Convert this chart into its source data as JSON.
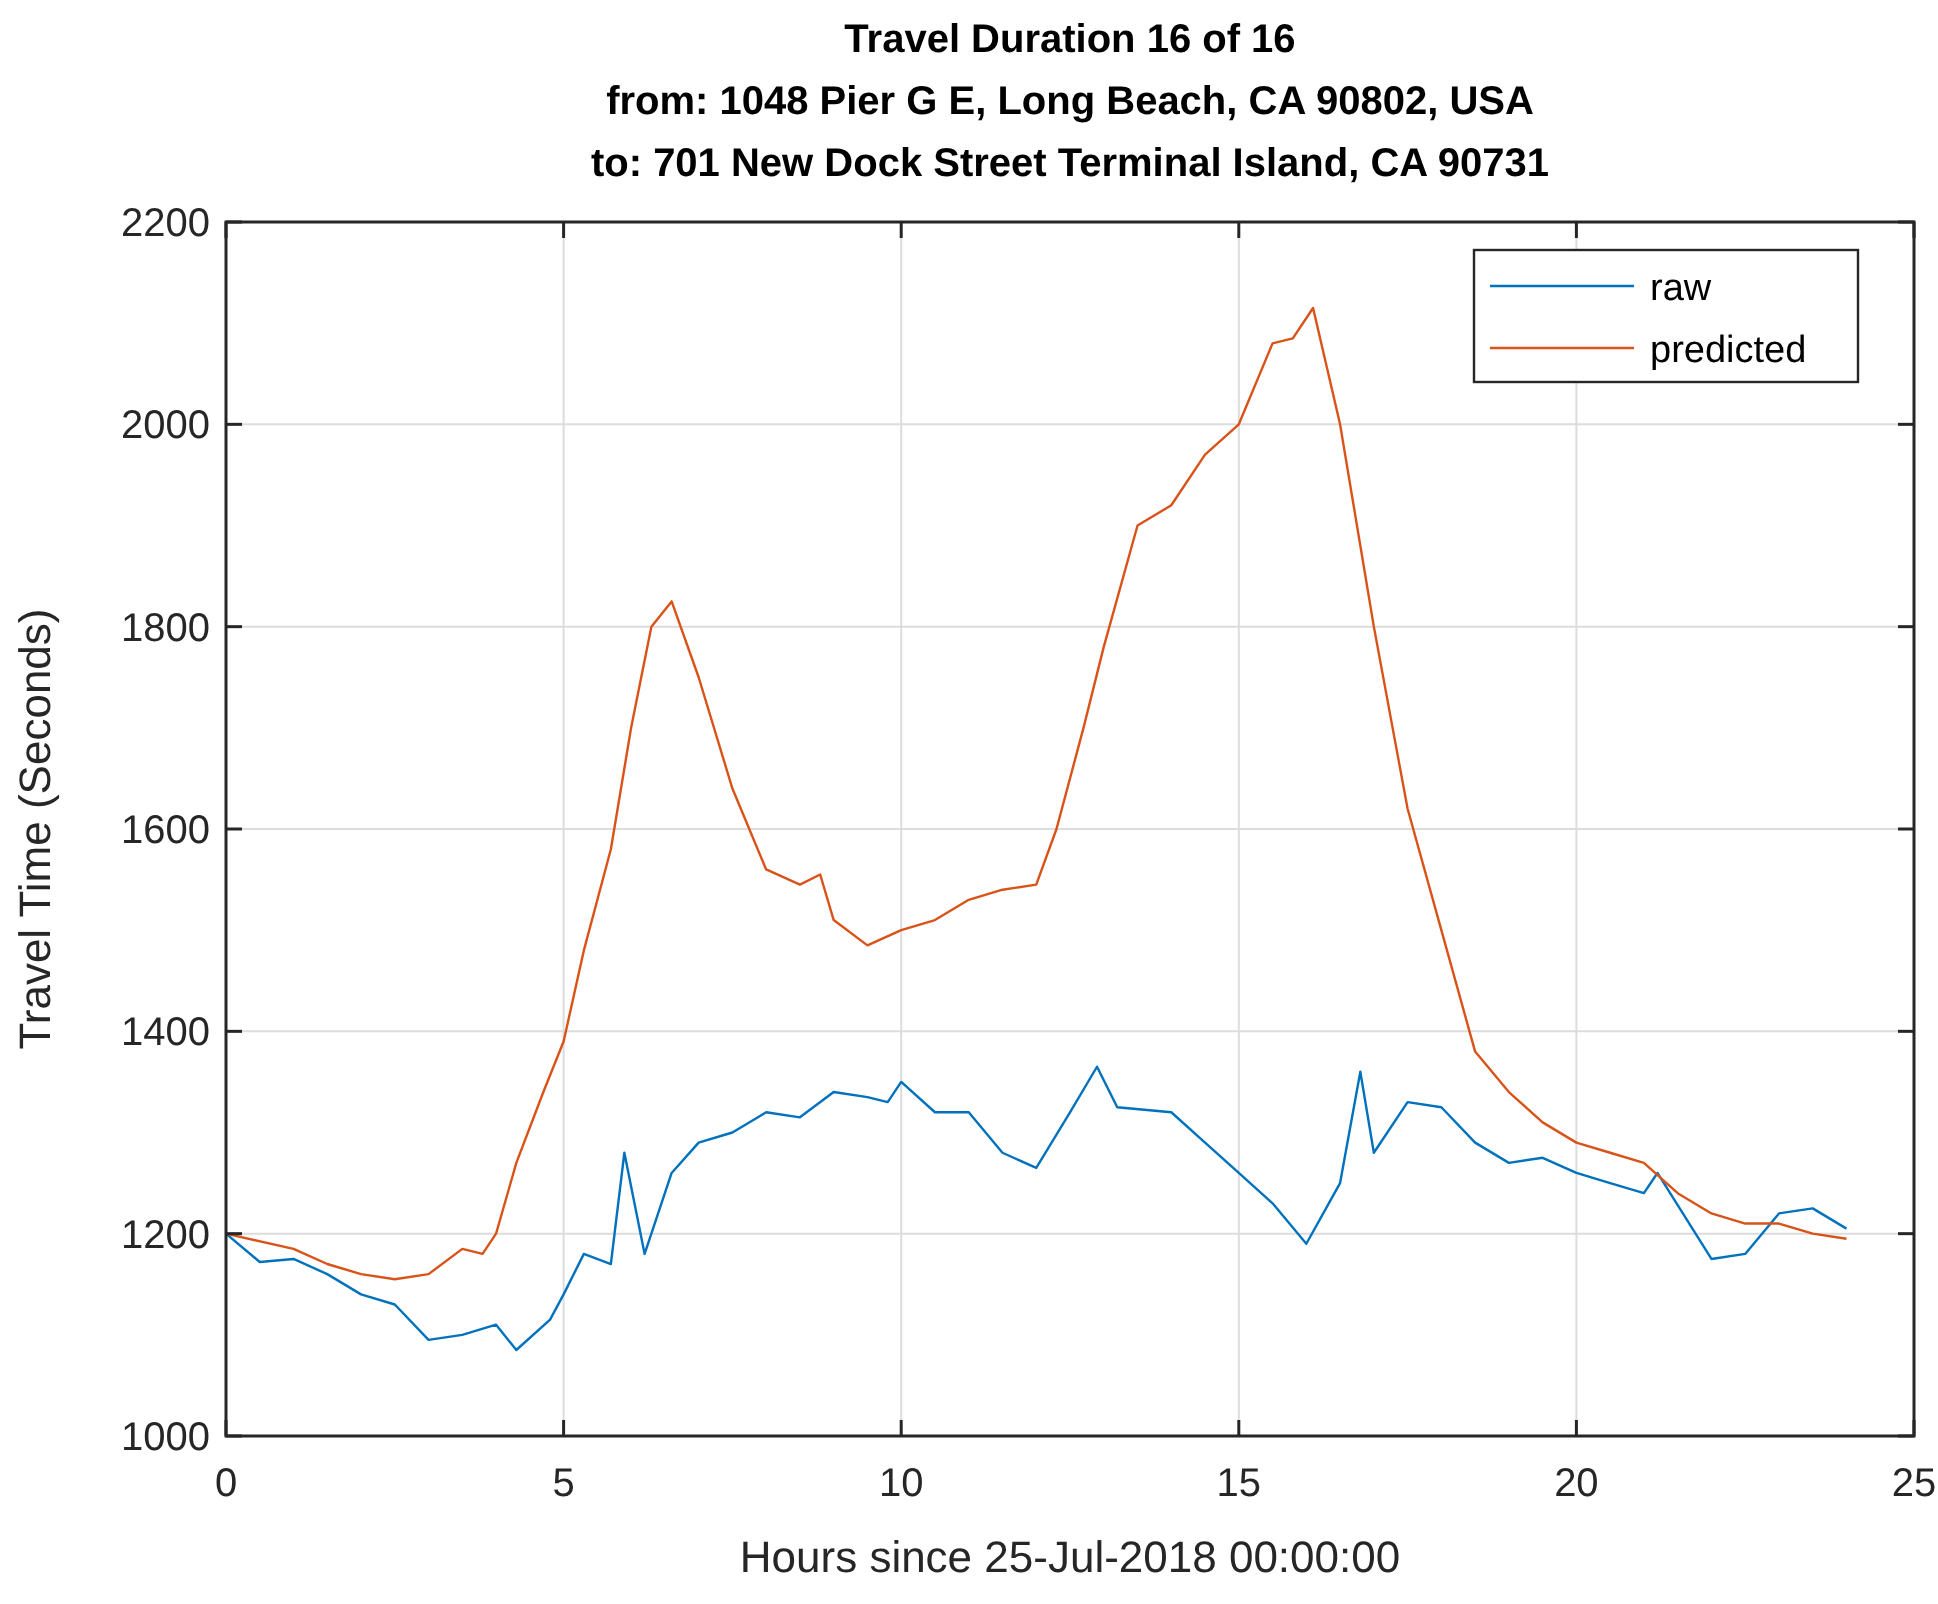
{
  "chart_data": {
    "type": "line",
    "title": "Travel Duration 16 of 16\nfrom: 1048 Pier G E, Long Beach, CA 90802, USA\nto: 701 New Dock Street Terminal Island, CA 90731",
    "xlabel": "Hours since 25-Jul-2018 00:00:00",
    "ylabel": "Travel Time (Seconds)",
    "xlim": [
      0,
      25
    ],
    "xticks": [
      0,
      5,
      10,
      15,
      20,
      25
    ],
    "ylim": [
      1000,
      2200
    ],
    "yticks": [
      1000,
      1200,
      1400,
      1600,
      1800,
      2000,
      2200
    ],
    "grid": true,
    "legend": "top right",
    "line_style": "solid",
    "series": [
      {
        "name": "raw",
        "color": "#0072bd",
        "x": [
          0,
          0.5,
          1,
          1.5,
          2,
          2.5,
          3,
          3.5,
          4,
          4.3,
          4.8,
          5,
          5.3,
          5.7,
          5.9,
          6.2,
          6.6,
          7,
          7.5,
          8,
          8.5,
          9,
          9.5,
          9.8,
          10,
          10.5,
          11,
          11.5,
          12,
          12.5,
          12.9,
          13.2,
          14,
          14.5,
          15,
          15.5,
          16,
          16.5,
          16.8,
          17,
          17.5,
          18,
          18.5,
          19,
          19.5,
          20,
          20.5,
          21,
          21.2,
          22,
          22.5,
          23,
          23.5,
          24
        ],
        "values": [
          1200,
          1172,
          1175,
          1160,
          1140,
          1130,
          1095,
          1100,
          1110,
          1085,
          1115,
          1140,
          1180,
          1170,
          1280,
          1180,
          1260,
          1290,
          1300,
          1320,
          1315,
          1340,
          1335,
          1330,
          1350,
          1320,
          1320,
          1280,
          1265,
          1320,
          1365,
          1325,
          1320,
          1290,
          1260,
          1230,
          1190,
          1250,
          1360,
          1280,
          1330,
          1325,
          1290,
          1270,
          1275,
          1260,
          1250,
          1240,
          1260,
          1175,
          1180,
          1220,
          1225,
          1205
        ]
      },
      {
        "name": "predicted",
        "color": "#d95319",
        "x": [
          0,
          1,
          1.5,
          2,
          2.5,
          3,
          3.5,
          3.8,
          4,
          4.3,
          4.7,
          5,
          5.3,
          5.7,
          6,
          6.3,
          6.6,
          7,
          7.5,
          8,
          8.5,
          8.8,
          9,
          9.5,
          10,
          10.5,
          11,
          11.5,
          12,
          12.3,
          12.7,
          13,
          13.5,
          14,
          14.5,
          15,
          15.5,
          15.8,
          16.1,
          16.5,
          17,
          17.5,
          18,
          18.5,
          19,
          19.5,
          20,
          20.5,
          21,
          21.5,
          22,
          22.5,
          23,
          23.5,
          24
        ],
        "values": [
          1200,
          1185,
          1170,
          1160,
          1155,
          1160,
          1185,
          1180,
          1200,
          1270,
          1340,
          1390,
          1480,
          1580,
          1700,
          1800,
          1825,
          1750,
          1640,
          1560,
          1545,
          1555,
          1510,
          1485,
          1500,
          1510,
          1530,
          1540,
          1545,
          1600,
          1700,
          1780,
          1900,
          1920,
          1970,
          2000,
          2080,
          2085,
          2115,
          2000,
          1800,
          1620,
          1500,
          1380,
          1340,
          1310,
          1290,
          1280,
          1270,
          1240,
          1220,
          1210,
          1210,
          1200,
          1195
        ]
      }
    ]
  }
}
